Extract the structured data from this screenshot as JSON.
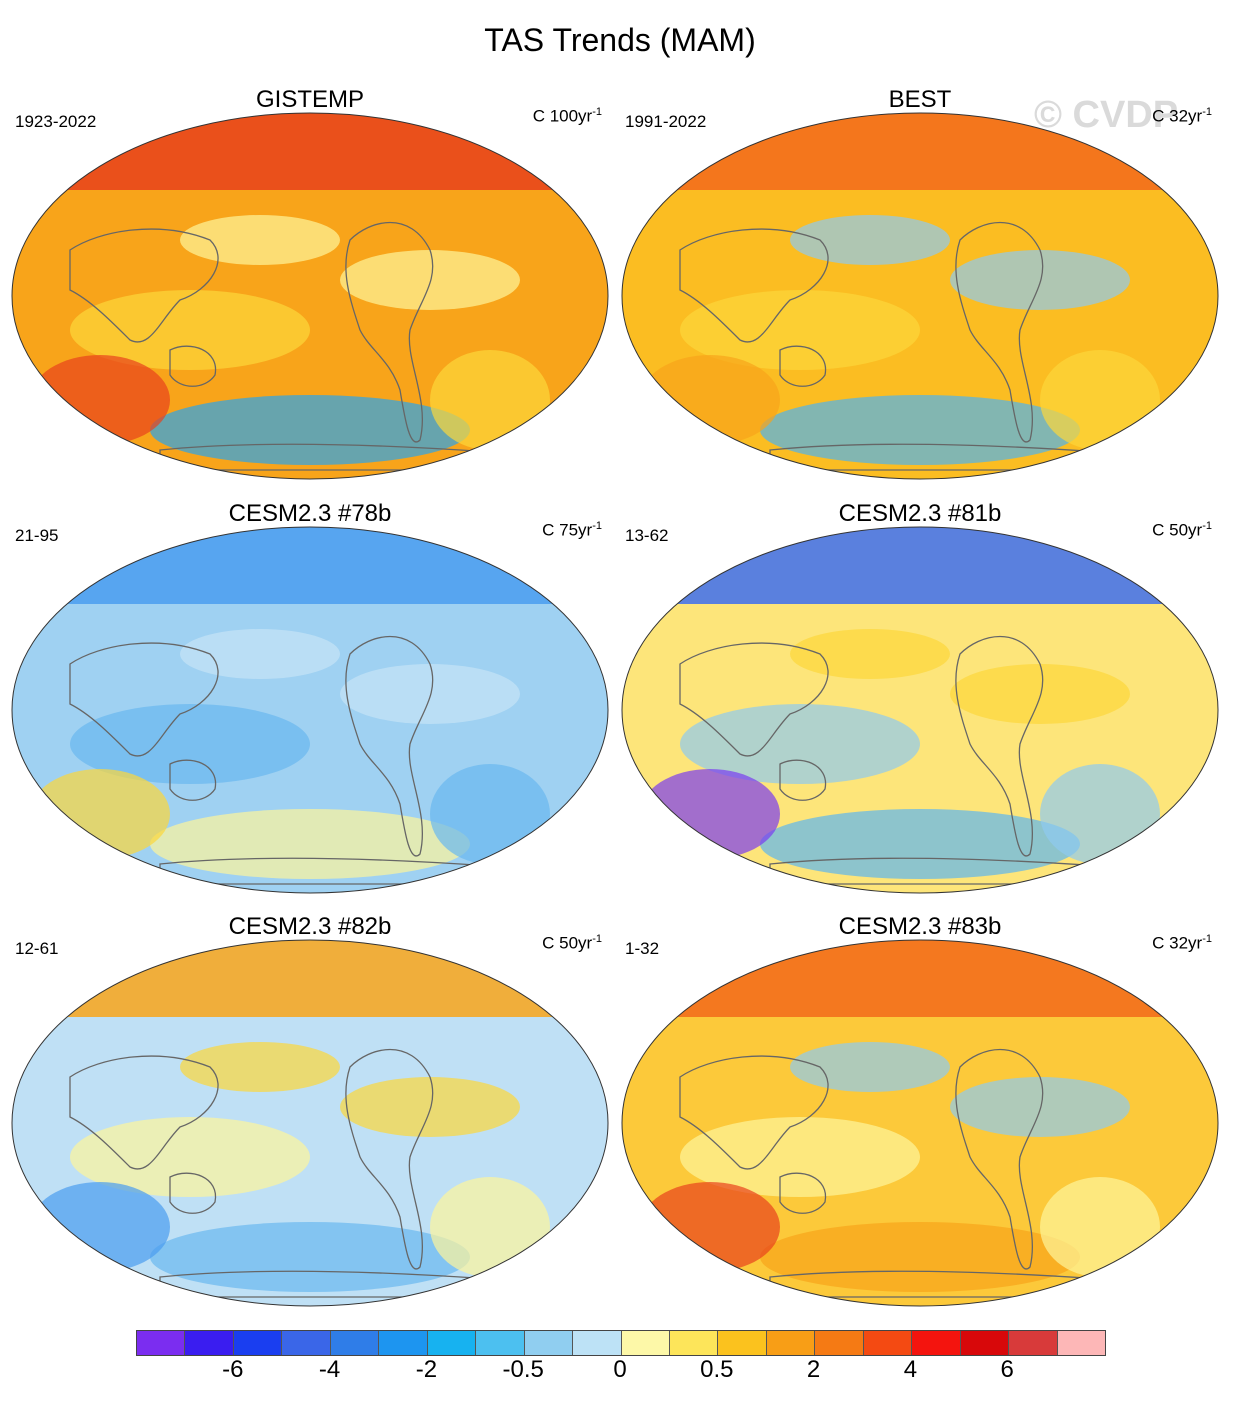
{
  "title": "TAS Trends (MAM)",
  "watermark": "© CVDP",
  "panels": [
    {
      "title": "GISTEMP",
      "period": "1923-2022",
      "units_prefix": "C 100yr",
      "units_sup": "-1",
      "base": "#f8a41a",
      "north": "#e8421c",
      "patches": [
        "#fcd73a",
        "#fdf59b",
        "#2aa4ec",
        "#e8421c"
      ]
    },
    {
      "title": "BEST",
      "period": "1991-2022",
      "units_prefix": "C 32yr",
      "units_sup": "-1",
      "base": "#fbbd22",
      "north": "#f26a1b",
      "patches": [
        "#fcd73a",
        "#8ecaf0",
        "#4fb3ee",
        "#f8a41a"
      ]
    },
    {
      "title": "CESM2.3 #78b",
      "period": "21-95",
      "units_prefix": "C 75yr",
      "units_sup": "-1",
      "base": "#9fd1f2",
      "north": "#4a9df0",
      "patches": [
        "#6ab8f0",
        "#c6e4f7",
        "#fdf59b",
        "#fcd73a"
      ]
    },
    {
      "title": "CESM2.3 #81b",
      "period": "13-62",
      "units_prefix": "C 50yr",
      "units_sup": "-1",
      "base": "#fde57a",
      "north": "#3d6ef0",
      "patches": [
        "#8ecaf0",
        "#fcd73a",
        "#5db6f0",
        "#7a3cf0"
      ]
    },
    {
      "title": "CESM2.3 #82b",
      "period": "12-61",
      "units_prefix": "C 50yr",
      "units_sup": "-1",
      "base": "#bfe0f5",
      "north": "#f8a41a",
      "patches": [
        "#fdf59b",
        "#fcd73a",
        "#6ab8f0",
        "#4a9df0"
      ]
    },
    {
      "title": "CESM2.3 #83b",
      "period": "1-32",
      "units_prefix": "C 32yr",
      "units_sup": "-1",
      "base": "#fcc93a",
      "north": "#f26a1b",
      "patches": [
        "#fdf59b",
        "#8ecaf0",
        "#f8a41a",
        "#e8421c"
      ]
    }
  ],
  "colorbar": {
    "colors": [
      "#7b2df0",
      "#3a1df0",
      "#1a3ef0",
      "#3a66e8",
      "#2f7de8",
      "#1d95f0",
      "#17b2f0",
      "#4cc0f0",
      "#90cef0",
      "#bde2f6",
      "#fdf8a8",
      "#fde55a",
      "#fbc21e",
      "#f89e16",
      "#f57a14",
      "#f44a12",
      "#f4140e",
      "#d8080a",
      "#d83a3a",
      "#fdb7b7"
    ],
    "labels": [
      "-6",
      "-4",
      "-2",
      "-0.5",
      "0",
      "0.5",
      "2",
      "4",
      "6"
    ]
  }
}
